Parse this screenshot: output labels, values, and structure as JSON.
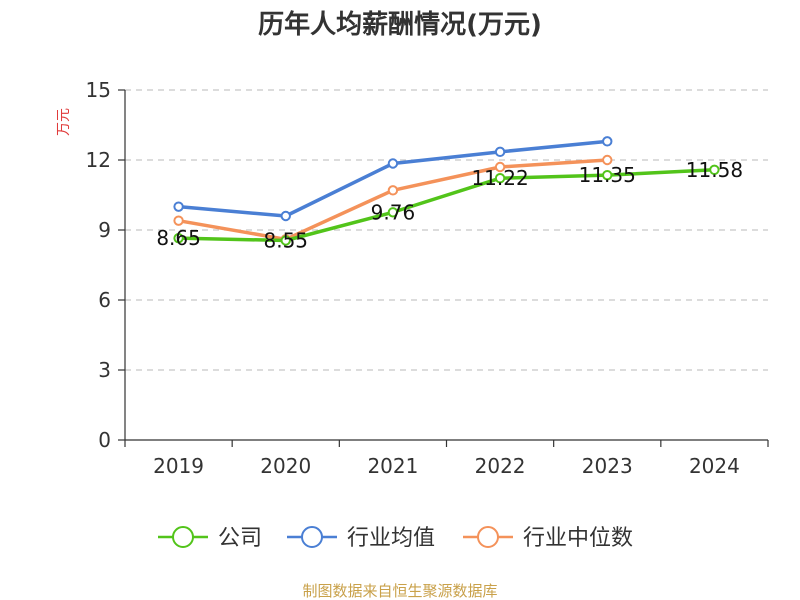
{
  "chart_data": {
    "type": "line",
    "title": "历年人均薪酬情况(万元)",
    "ylabel": "万元",
    "xlabel": "",
    "categories": [
      "2019",
      "2020",
      "2021",
      "2022",
      "2023",
      "2024"
    ],
    "ylim": [
      0,
      15
    ],
    "yticks": [
      0,
      3,
      6,
      9,
      12,
      15
    ],
    "grid": true,
    "legend_position": "bottom",
    "series": [
      {
        "name": "公司",
        "color": "#52c41a",
        "values": [
          8.65,
          8.55,
          9.76,
          11.22,
          11.35,
          11.58
        ],
        "labels": [
          "8.65",
          "8.55",
          "9.76",
          "11.22",
          "11.35",
          "11.58"
        ]
      },
      {
        "name": "行业均值",
        "color": "#4a7fd4",
        "values": [
          10.0,
          9.6,
          11.85,
          12.35,
          12.8,
          null
        ]
      },
      {
        "name": "行业中位数",
        "color": "#f4925a",
        "values": [
          9.4,
          8.6,
          10.7,
          11.7,
          12.0,
          null
        ]
      }
    ]
  },
  "source": "制图数据来自恒生聚源数据库"
}
